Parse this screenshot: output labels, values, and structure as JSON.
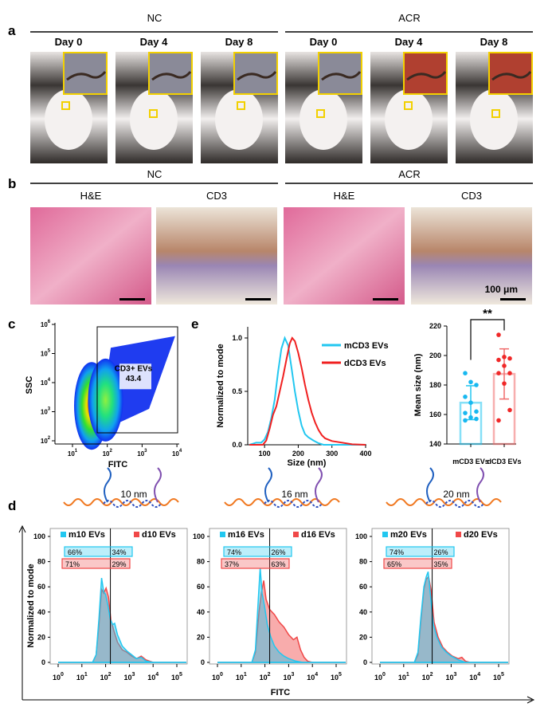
{
  "panel_a": {
    "label": "a",
    "groups": [
      {
        "name": "NC",
        "days": [
          "Day 0",
          "Day 4",
          "Day 8"
        ]
      },
      {
        "name": "ACR",
        "days": [
          "Day 0",
          "Day 4",
          "Day 8"
        ]
      }
    ]
  },
  "panel_b": {
    "label": "b",
    "groups": [
      {
        "name": "NC",
        "stains": [
          "H&E",
          "CD3"
        ]
      },
      {
        "name": "ACR",
        "stains": [
          "H&E",
          "CD3"
        ]
      }
    ],
    "scale_bar": "100 μm"
  },
  "panel_c": {
    "label": "c"
  },
  "panel_d": {
    "label": "d",
    "spacings": [
      "10 nm",
      "16 nm",
      "20 nm"
    ],
    "ylabel": "Normalized to mode",
    "xlabel": "FITC"
  },
  "panel_e": {
    "label": "e"
  },
  "chart_data": [
    {
      "id": "c",
      "type": "scatter",
      "subtype": "density-plot",
      "xlabel": "FITC",
      "ylabel": "SSC",
      "xscale": "log",
      "yscale": "log",
      "xticks": [
        "10^1",
        "10^2",
        "10^3",
        "10^4"
      ],
      "yticks": [
        "10^2",
        "10^3",
        "10^4",
        "10^5",
        "10^6"
      ],
      "gate": {
        "name": "CD3+ EVs",
        "value": "43.4"
      }
    },
    {
      "id": "e-size",
      "type": "line",
      "xlabel": "Size (nm)",
      "ylabel": "Normalized to mode",
      "xlim": [
        50,
        400
      ],
      "ylim": [
        0,
        1.1
      ],
      "xticks": [
        "100",
        "200",
        "300",
        "400"
      ],
      "yticks": [
        "0.0",
        "0.5",
        "1.0"
      ],
      "legend": "top-right",
      "series": [
        {
          "name": "mCD3 EVs",
          "color": "#22c7f0",
          "points": [
            [
              55,
              0
            ],
            [
              65,
              0.01
            ],
            [
              75,
              0.02
            ],
            [
              90,
              0.02
            ],
            [
              100,
              0.05
            ],
            [
              110,
              0.12
            ],
            [
              120,
              0.25
            ],
            [
              130,
              0.42
            ],
            [
              140,
              0.68
            ],
            [
              150,
              0.9
            ],
            [
              160,
              1.0
            ],
            [
              170,
              0.93
            ],
            [
              180,
              0.72
            ],
            [
              190,
              0.5
            ],
            [
              200,
              0.32
            ],
            [
              210,
              0.18
            ],
            [
              220,
              0.1
            ],
            [
              230,
              0.07
            ],
            [
              245,
              0.04
            ],
            [
              260,
              0.015
            ],
            [
              275,
              0
            ],
            [
              400,
              0
            ]
          ]
        },
        {
          "name": "dCD3 EVs",
          "color": "#f02020",
          "points": [
            [
              55,
              0
            ],
            [
              95,
              0
            ],
            [
              105,
              0.04
            ],
            [
              115,
              0.15
            ],
            [
              125,
              0.28
            ],
            [
              135,
              0.36
            ],
            [
              145,
              0.5
            ],
            [
              155,
              0.64
            ],
            [
              165,
              0.8
            ],
            [
              175,
              0.95
            ],
            [
              182,
              1.0
            ],
            [
              190,
              0.97
            ],
            [
              200,
              0.86
            ],
            [
              210,
              0.72
            ],
            [
              220,
              0.56
            ],
            [
              230,
              0.42
            ],
            [
              240,
              0.3
            ],
            [
              250,
              0.21
            ],
            [
              260,
              0.14
            ],
            [
              270,
              0.09
            ],
            [
              280,
              0.06
            ],
            [
              300,
              0.035
            ],
            [
              330,
              0.02
            ],
            [
              360,
              0.005
            ],
            [
              400,
              0
            ]
          ]
        }
      ]
    },
    {
      "id": "e-bar",
      "type": "bar",
      "ylabel": "Mean size (nm)",
      "ylim": [
        140,
        220
      ],
      "yticks": [
        "140",
        "160",
        "180",
        "200",
        "220"
      ],
      "categories": [
        "mCD3 EVs",
        "dCD3 EVs"
      ],
      "values": [
        168,
        187.5
      ],
      "errors": [
        11.5,
        17
      ],
      "colors": [
        "#22c7f0",
        "#f06b6b"
      ],
      "points": [
        [
          188,
          182,
          180,
          172,
          168,
          162,
          161,
          158,
          157,
          156
        ],
        [
          214,
          199,
          198,
          197,
          193,
          188,
          188,
          181,
          163,
          156
        ]
      ],
      "significance": "**"
    },
    {
      "id": "d10",
      "type": "area",
      "xscale": "log",
      "xlim": [
        0,
        5.4
      ],
      "ylim": [
        0,
        100
      ],
      "yticks": [
        "0",
        "20",
        "40",
        "60",
        "80",
        "100"
      ],
      "xticks": [
        "10^0",
        "10^1",
        "10^2",
        "10^3",
        "10^4",
        "10^5"
      ],
      "gate_log10": 2.2,
      "series": [
        {
          "name": "m10 EVs",
          "color": "#22c7f0",
          "gate_pct": [
            "66%",
            "34%"
          ],
          "points": [
            [
              1.45,
              0
            ],
            [
              1.6,
              6
            ],
            [
              1.72,
              35
            ],
            [
              1.83,
              67
            ],
            [
              1.92,
              56
            ],
            [
              2.0,
              54
            ],
            [
              2.1,
              45
            ],
            [
              2.2,
              34
            ],
            [
              2.3,
              30
            ],
            [
              2.38,
              31
            ],
            [
              2.5,
              22
            ],
            [
              2.7,
              13
            ],
            [
              2.9,
              9
            ],
            [
              3.1,
              6
            ],
            [
              3.3,
              3
            ],
            [
              3.5,
              4
            ],
            [
              3.7,
              1
            ],
            [
              4.0,
              0
            ]
          ]
        },
        {
          "name": "d10 EVs",
          "color": "#f04848",
          "gate_pct": [
            "71%",
            "29%"
          ],
          "points": [
            [
              1.45,
              0
            ],
            [
              1.6,
              6
            ],
            [
              1.72,
              30
            ],
            [
              1.83,
              58
            ],
            [
              1.92,
              55
            ],
            [
              2.02,
              59
            ],
            [
              2.12,
              52
            ],
            [
              2.22,
              34
            ],
            [
              2.35,
              25
            ],
            [
              2.5,
              16
            ],
            [
              2.7,
              10
            ],
            [
              2.9,
              8
            ],
            [
              3.1,
              5
            ],
            [
              3.3,
              3
            ],
            [
              3.5,
              5
            ],
            [
              3.7,
              2
            ],
            [
              4.0,
              0
            ]
          ]
        }
      ]
    },
    {
      "id": "d16",
      "type": "area",
      "xscale": "log",
      "xlim": [
        0,
        5.4
      ],
      "ylim": [
        0,
        100
      ],
      "yticks": [
        "0",
        "20",
        "40",
        "60",
        "80",
        "100"
      ],
      "xticks": [
        "10^0",
        "10^1",
        "10^2",
        "10^3",
        "10^4",
        "10^5"
      ],
      "gate_log10": 2.2,
      "series": [
        {
          "name": "m16 EVs",
          "color": "#22c7f0",
          "gate_pct": [
            "74%",
            "26%"
          ],
          "points": [
            [
              1.45,
              0
            ],
            [
              1.6,
              10
            ],
            [
              1.72,
              50
            ],
            [
              1.8,
              75
            ],
            [
              1.88,
              55
            ],
            [
              1.98,
              45
            ],
            [
              2.1,
              30
            ],
            [
              2.25,
              20
            ],
            [
              2.4,
              13
            ],
            [
              2.6,
              8
            ],
            [
              2.8,
              5
            ],
            [
              3.0,
              3
            ],
            [
              3.3,
              1
            ],
            [
              3.6,
              0
            ]
          ]
        },
        {
          "name": "d16 EVs",
          "color": "#f04848",
          "gate_pct": [
            "37%",
            "63%"
          ],
          "points": [
            [
              1.45,
              0
            ],
            [
              1.6,
              8
            ],
            [
              1.75,
              40
            ],
            [
              1.85,
              55
            ],
            [
              1.95,
              65
            ],
            [
              2.05,
              50
            ],
            [
              2.2,
              42
            ],
            [
              2.4,
              38
            ],
            [
              2.6,
              32
            ],
            [
              2.8,
              28
            ],
            [
              3.0,
              22
            ],
            [
              3.2,
              18
            ],
            [
              3.35,
              20
            ],
            [
              3.5,
              10
            ],
            [
              3.65,
              4
            ],
            [
              3.8,
              1
            ],
            [
              4.0,
              0
            ]
          ]
        }
      ]
    },
    {
      "id": "d20",
      "type": "area",
      "xscale": "log",
      "xlim": [
        0,
        5.4
      ],
      "ylim": [
        0,
        100
      ],
      "yticks": [
        "0",
        "20",
        "40",
        "60",
        "80",
        "100"
      ],
      "xticks": [
        "10^0",
        "10^1",
        "10^2",
        "10^3",
        "10^4",
        "10^5"
      ],
      "gate_log10": 2.2,
      "series": [
        {
          "name": "m20 EVs",
          "color": "#22c7f0",
          "gate_pct": [
            "74%",
            "26%"
          ],
          "points": [
            [
              1.45,
              0
            ],
            [
              1.6,
              8
            ],
            [
              1.72,
              35
            ],
            [
              1.85,
              60
            ],
            [
              1.95,
              68
            ],
            [
              2.03,
              72
            ],
            [
              2.12,
              55
            ],
            [
              2.25,
              30
            ],
            [
              2.4,
              20
            ],
            [
              2.6,
              12
            ],
            [
              2.8,
              8
            ],
            [
              3.0,
              5
            ],
            [
              3.3,
              2
            ],
            [
              3.6,
              0
            ]
          ]
        },
        {
          "name": "d20 EVs",
          "color": "#f04848",
          "gate_pct": [
            "65%",
            "35%"
          ],
          "points": [
            [
              1.45,
              0
            ],
            [
              1.6,
              6
            ],
            [
              1.72,
              32
            ],
            [
              1.85,
              58
            ],
            [
              1.95,
              66
            ],
            [
              2.05,
              68
            ],
            [
              2.15,
              58
            ],
            [
              2.28,
              32
            ],
            [
              2.45,
              20
            ],
            [
              2.65,
              12
            ],
            [
              2.85,
              8
            ],
            [
              3.05,
              5
            ],
            [
              3.3,
              3
            ],
            [
              3.45,
              4
            ],
            [
              3.6,
              1
            ],
            [
              3.8,
              0
            ]
          ]
        }
      ]
    }
  ]
}
